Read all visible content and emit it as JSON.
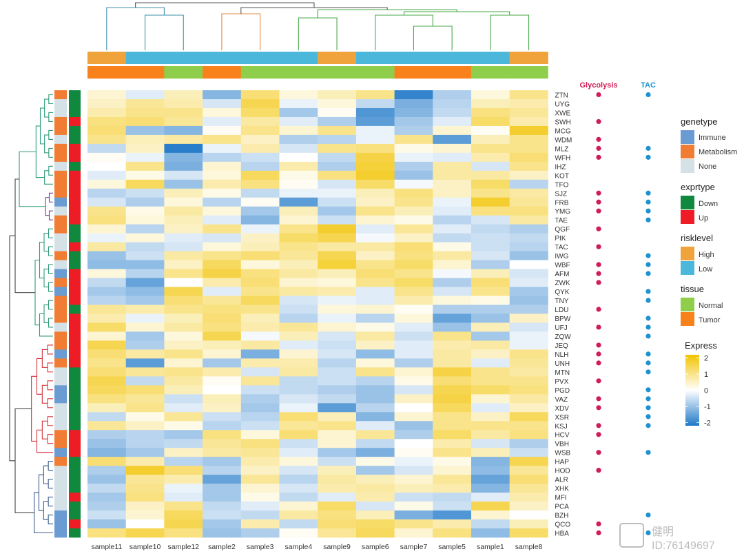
{
  "chart_data": {
    "type": "heatmap",
    "samples": [
      "sample11",
      "sample10",
      "sample12",
      "sample2",
      "sample3",
      "sample4",
      "sample9",
      "sample6",
      "sample7",
      "sample5",
      "sample1",
      "sample8"
    ],
    "genes": [
      "ZTN",
      "UYG",
      "XWE",
      "SWH",
      "MCG",
      "WDM",
      "MLZ",
      "WFH",
      "IHZ",
      "KOT",
      "TFO",
      "SJZ",
      "FRB",
      "YMG",
      "TAE",
      "QGF",
      "PIK",
      "TAC",
      "IWG",
      "WBF",
      "AFM",
      "ZWK",
      "QYK",
      "TNY",
      "LDU",
      "BPW",
      "UFJ",
      "ZQW",
      "JEQ",
      "NLH",
      "UNH",
      "MTN",
      "PVX",
      "PGD",
      "VAZ",
      "XDV",
      "XSR",
      "KSJ",
      "HCV",
      "VBH",
      "WSB",
      "HAP",
      "HOD",
      "ALR",
      "XHK",
      "MFI",
      "PCA",
      "BZH",
      "QCO",
      "HBA"
    ],
    "sample_annotations": {
      "risklevel": [
        "High",
        "Low",
        "Low",
        "Low",
        "Low",
        "Low",
        "High",
        "Low",
        "Low",
        "Low",
        "Low",
        "High"
      ],
      "tissue": [
        "Tumor",
        "Tumor",
        "Normal",
        "Tumor",
        "Normal",
        "Normal",
        "Normal",
        "Normal",
        "Tumor",
        "Tumor",
        "Normal",
        "Normal"
      ]
    },
    "gene_annotations": {
      "genetype": [
        "Metabolism",
        "None",
        "None",
        "Metabolism",
        "Metabolism",
        "None",
        "Metabolism",
        "Metabolism",
        "None",
        "Metabolism",
        "Metabolism",
        "Metabolism",
        "Immune",
        "None",
        "Metabolism",
        "Metabolism",
        "None",
        "None",
        "Metabolism",
        "None",
        "Immune",
        "Metabolism",
        "Immune",
        "Metabolism",
        "Metabolism",
        "Metabolism",
        "None",
        "Metabolism",
        "Metabolism",
        "Immune",
        "Metabolism",
        "None",
        "None",
        "Immune",
        "Immune",
        "None",
        "None",
        "None",
        "Metabolism",
        "Metabolism",
        "Immune",
        "Metabolism",
        "None",
        "None",
        "None",
        "None",
        "None",
        "Immune",
        "Immune",
        "Immune"
      ],
      "exprtype": [
        "Down",
        "Down",
        "Down",
        "Up",
        "Down",
        "Down",
        "Up",
        "Up",
        "Down",
        "Up",
        "Up",
        "Up",
        "Up",
        "Up",
        "Up",
        "Down",
        "Down",
        "Up",
        "Down",
        "Down",
        "Up",
        "Up",
        "Up",
        "Up",
        "Down",
        "Up",
        "Up",
        "Up",
        "Up",
        "Up",
        "Up",
        "Down",
        "Down",
        "Down",
        "Down",
        "Down",
        "Down",
        "Down",
        "Up",
        "Up",
        "Up",
        "Down",
        "Down",
        "Down",
        "Down",
        "Up",
        "Down",
        "Down",
        "Up",
        "Down"
      ]
    },
    "markers": {
      "Glycolysis": [
        1,
        0,
        0,
        1,
        0,
        1,
        1,
        1,
        0,
        0,
        0,
        1,
        1,
        1,
        0,
        1,
        0,
        1,
        0,
        1,
        1,
        1,
        0,
        0,
        1,
        0,
        1,
        0,
        1,
        1,
        1,
        0,
        1,
        0,
        1,
        1,
        0,
        1,
        1,
        0,
        1,
        0,
        1,
        0,
        0,
        0,
        0,
        0,
        1,
        1
      ],
      "TAC": [
        1,
        0,
        0,
        0,
        0,
        0,
        1,
        1,
        0,
        0,
        0,
        1,
        1,
        1,
        1,
        0,
        0,
        0,
        1,
        1,
        1,
        0,
        1,
        1,
        0,
        1,
        1,
        1,
        0,
        1,
        1,
        1,
        0,
        1,
        1,
        1,
        1,
        1,
        0,
        0,
        1,
        0,
        0,
        0,
        0,
        0,
        0,
        1,
        0,
        1
      ]
    },
    "values": [
      [
        0.4,
        -0.3,
        0.6,
        -1.2,
        1.2,
        0.3,
        0.6,
        1.0,
        -2.0,
        -0.8,
        0.3,
        1.0
      ],
      [
        0.5,
        0.9,
        0.7,
        -0.4,
        1.5,
        -0.2,
        0.3,
        -0.6,
        -1.3,
        -0.7,
        0.6,
        0.7
      ],
      [
        0.7,
        1.0,
        1.0,
        0.3,
        1.3,
        -0.9,
        0.1,
        -1.7,
        -1.2,
        -0.6,
        1.1,
        0.9
      ],
      [
        1.1,
        1.2,
        0.9,
        -0.3,
        0.8,
        -0.3,
        -0.8,
        -1.6,
        -0.9,
        -0.3,
        1.3,
        0.7
      ],
      [
        1.2,
        -1.0,
        -1.2,
        0.1,
        1.0,
        0.4,
        1.0,
        -0.2,
        -0.8,
        0.4,
        0.1,
        1.8
      ],
      [
        1.0,
        0.6,
        0.8,
        1.0,
        0.5,
        -0.8,
        -0.7,
        -0.2,
        1.0,
        -1.6,
        0.6,
        1.0
      ],
      [
        -0.6,
        0.5,
        -2.1,
        -0.2,
        0.7,
        -0.4,
        1.0,
        1.1,
        0.2,
        0.4,
        1.0,
        1.0
      ],
      [
        0.1,
        -0.2,
        -1.2,
        -0.7,
        -0.5,
        0.0,
        -0.6,
        1.6,
        -0.2,
        -0.3,
        0.7,
        1.2
      ],
      [
        0.0,
        1.0,
        -1.3,
        0.4,
        -0.7,
        0.7,
        -0.8,
        1.7,
        -0.8,
        0.8,
        -0.4,
        1.0
      ],
      [
        -0.3,
        0.2,
        -0.4,
        0.3,
        1.4,
        0.2,
        1.1,
        1.8,
        -1.0,
        0.8,
        0.8,
        0.5
      ],
      [
        0.3,
        1.4,
        -1.0,
        0.7,
        1.1,
        0.1,
        -0.4,
        1.3,
        -0.1,
        0.5,
        1.3,
        -0.7
      ],
      [
        -0.7,
        -0.5,
        0.6,
        0.2,
        -0.6,
        -0.2,
        -0.2,
        0.6,
        1.1,
        0.5,
        1.0,
        0.8
      ],
      [
        -0.4,
        -0.8,
        0.3,
        -0.7,
        0.1,
        -1.6,
        -0.5,
        0.5,
        1.0,
        -0.2,
        1.8,
        0.9
      ],
      [
        1.0,
        0.2,
        0.8,
        0.3,
        -0.9,
        0.6,
        -0.9,
        1.0,
        0.6,
        -0.3,
        1.1,
        1.1
      ],
      [
        1.1,
        0.3,
        0.6,
        -0.3,
        -1.2,
        0.4,
        -0.5,
        0.4,
        0.2,
        -0.7,
        -0.4,
        0.8
      ],
      [
        0.4,
        -0.7,
        0.5,
        1.0,
        -0.2,
        1.0,
        1.8,
        -0.3,
        0.9,
        -0.3,
        -0.6,
        -0.8
      ],
      [
        -0.2,
        0.3,
        -0.3,
        -0.4,
        0.5,
        1.3,
        1.5,
        -0.1,
        0.5,
        -0.6,
        -0.5,
        -0.6
      ],
      [
        0.8,
        -0.6,
        -0.4,
        0.3,
        0.6,
        1.0,
        0.8,
        0.8,
        1.2,
        0.2,
        -0.5,
        -0.7
      ],
      [
        -1.0,
        -0.5,
        0.8,
        1.0,
        1.2,
        0.9,
        1.5,
        0.5,
        1.1,
        0.8,
        -0.4,
        -1.0
      ],
      [
        -1.1,
        -1.1,
        0.5,
        1.4,
        0.3,
        0.6,
        1.7,
        1.0,
        1.3,
        0.4,
        -0.8,
        0.0
      ],
      [
        0.3,
        -0.7,
        1.0,
        1.6,
        1.1,
        0.8,
        0.6,
        1.2,
        1.0,
        -0.1,
        0.6,
        -0.4
      ],
      [
        -0.6,
        -1.5,
        0.0,
        0.7,
        1.2,
        0.4,
        0.3,
        1.0,
        1.3,
        -0.8,
        1.2,
        -0.3
      ],
      [
        -0.9,
        -1.1,
        1.5,
        -0.3,
        1.0,
        0.8,
        0.7,
        -0.3,
        1.0,
        -0.4,
        1.0,
        -0.9
      ],
      [
        -0.7,
        -0.9,
        1.2,
        0.9,
        1.4,
        -0.4,
        -0.2,
        -0.3,
        0.7,
        0.3,
        0.2,
        -1.0
      ],
      [
        0.9,
        0.7,
        1.0,
        1.1,
        1.0,
        -0.5,
        0.3,
        0.4,
        0.1,
        -0.8,
        -0.8,
        -0.8
      ],
      [
        0.7,
        -0.2,
        0.6,
        1.2,
        0.6,
        -0.7,
        -0.2,
        -0.7,
        0.3,
        -1.5,
        -1.0,
        0.5
      ],
      [
        1.3,
        0.4,
        0.8,
        1.1,
        0.7,
        0.9,
        0.4,
        0.2,
        -0.3,
        -1.0,
        0.6,
        -0.4
      ],
      [
        0.4,
        -0.9,
        0.3,
        1.5,
        -0.1,
        0.6,
        -0.4,
        0.8,
        -0.5,
        1.0,
        -0.9,
        -0.2
      ],
      [
        1.5,
        -0.8,
        0.5,
        0.6,
        0.8,
        -0.3,
        -0.5,
        0.5,
        -0.3,
        0.7,
        0.8,
        -0.2
      ],
      [
        1.2,
        0.8,
        1.0,
        0.4,
        -1.3,
        0.4,
        -0.4,
        -1.1,
        -0.3,
        0.8,
        0.5,
        1.0
      ],
      [
        1.0,
        -1.6,
        0.4,
        -0.9,
        0.7,
        0.7,
        -0.7,
        0.3,
        -0.8,
        0.8,
        -0.3,
        0.9
      ],
      [
        1.2,
        0.9,
        1.0,
        0.7,
        -0.4,
        0.8,
        -0.5,
        1.0,
        0.4,
        1.6,
        1.0,
        0.8
      ],
      [
        1.5,
        -0.6,
        0.8,
        0.1,
        0.9,
        -0.6,
        -0.5,
        -0.7,
        0.2,
        1.2,
        1.0,
        1.0
      ],
      [
        1.4,
        1.2,
        0.6,
        0.0,
        -0.5,
        -0.6,
        -0.8,
        -1.0,
        -0.4,
        1.5,
        1.3,
        1.1
      ],
      [
        1.1,
        0.9,
        -0.5,
        0.6,
        -0.8,
        -0.4,
        -0.6,
        -1.0,
        0.5,
        1.6,
        0.4,
        0.8
      ],
      [
        0.6,
        1.0,
        -0.3,
        0.5,
        -0.9,
        -0.2,
        -1.6,
        -0.7,
        0.0,
        1.4,
        -0.3,
        0.5
      ],
      [
        -0.6,
        0.2,
        0.9,
        -0.5,
        -0.7,
        1.2,
        0.6,
        -1.2,
        0.4,
        1.0,
        0.5,
        1.4
      ],
      [
        0.9,
        0.5,
        0.2,
        -0.7,
        -0.5,
        0.9,
        1.0,
        -0.3,
        -1.0,
        1.0,
        1.0,
        1.0
      ],
      [
        -0.8,
        -0.7,
        -0.9,
        1.1,
        0.3,
        1.2,
        0.4,
        0.9,
        -0.8,
        1.3,
        0.8,
        1.1
      ],
      [
        -1.0,
        -0.7,
        -0.6,
        0.9,
        1.1,
        -0.5,
        0.4,
        -0.6,
        0.0,
        0.7,
        -0.4,
        -0.8
      ],
      [
        -1.2,
        -0.9,
        0.5,
        0.8,
        0.9,
        -0.3,
        -0.9,
        -1.3,
        0.1,
        1.0,
        0.6,
        -0.5
      ],
      [
        1.2,
        0.7,
        -0.7,
        -0.9,
        0.7,
        0.3,
        -0.5,
        0.2,
        -0.2,
        0.2,
        -1.2,
        1.5
      ],
      [
        -0.8,
        1.8,
        1.2,
        -0.7,
        0.5,
        -0.4,
        0.6,
        -0.9,
        -0.4,
        0.4,
        -1.1,
        0.9
      ],
      [
        -1.0,
        0.9,
        0.7,
        -1.5,
        0.9,
        -0.7,
        0.8,
        0.6,
        0.4,
        0.9,
        -1.5,
        1.2
      ],
      [
        -0.6,
        1.0,
        -0.2,
        -0.9,
        0.4,
        -0.4,
        0.7,
        0.8,
        0.6,
        0.7,
        -1.2,
        0.9
      ],
      [
        -0.9,
        1.1,
        -0.3,
        -0.9,
        0.2,
        -0.6,
        -0.3,
        0.7,
        -0.5,
        -0.6,
        -0.3,
        0.7
      ],
      [
        -0.8,
        0.5,
        1.0,
        -0.6,
        -0.3,
        0.4,
        1.3,
        -0.4,
        0.2,
        -0.5,
        1.5,
        0.5
      ],
      [
        -0.5,
        0.4,
        1.4,
        -0.5,
        -0.6,
        0.8,
        1.1,
        0.6,
        -1.3,
        -1.7,
        0.4,
        0.0
      ],
      [
        -1.0,
        0.0,
        1.5,
        -0.9,
        0.7,
        -0.6,
        1.2,
        1.3,
        1.0,
        0.7,
        -0.6,
        0.6
      ],
      [
        1.1,
        1.5,
        1.1,
        -1.0,
        -0.8,
        0.1,
        0.9,
        1.4,
        0.4,
        1.1,
        -1.1,
        1.3
      ]
    ],
    "legend": {
      "genetype": {
        "title": "genetype",
        "entries": [
          "Immune",
          "Metabolism",
          "None"
        ]
      },
      "exprtype": {
        "title": "exprtype",
        "entries": [
          "Down",
          "Up"
        ]
      },
      "risklevel": {
        "title": "risklevel",
        "entries": [
          "High",
          "Low"
        ]
      },
      "tissue": {
        "title": "tissue",
        "entries": [
          "Normal",
          "Tumor"
        ]
      },
      "express": {
        "title": "Express",
        "ticks": [
          2,
          1,
          0,
          -1,
          -2
        ],
        "tick_labels": [
          "2",
          "1",
          "0",
          "-1",
          "-2"
        ]
      }
    },
    "color_range": [
      -2.2,
      2.2
    ],
    "legend_placement": "right",
    "grid": false
  },
  "colors": {
    "high_expr": "#f2c300",
    "mid_expr": "#ffffff",
    "low_expr": "#1f78c8",
    "Immune": "#6a9bd2",
    "Metabolism": "#f07d33",
    "None": "#d4e1e6",
    "Down": "#10893e",
    "Up": "#ee1c25",
    "High": "#f0a33a",
    "Low": "#4bb8db",
    "Normal": "#8fce4a",
    "Tumor": "#f9811c",
    "glycolysis_marker": "#cf1d55",
    "tac_marker": "#1c93cf"
  },
  "marker_titles": {
    "Glycolysis": "Glycolysis",
    "TAC": "TAC"
  },
  "watermark": {
    "line1": "健明",
    "line2": "ID:76149697"
  }
}
